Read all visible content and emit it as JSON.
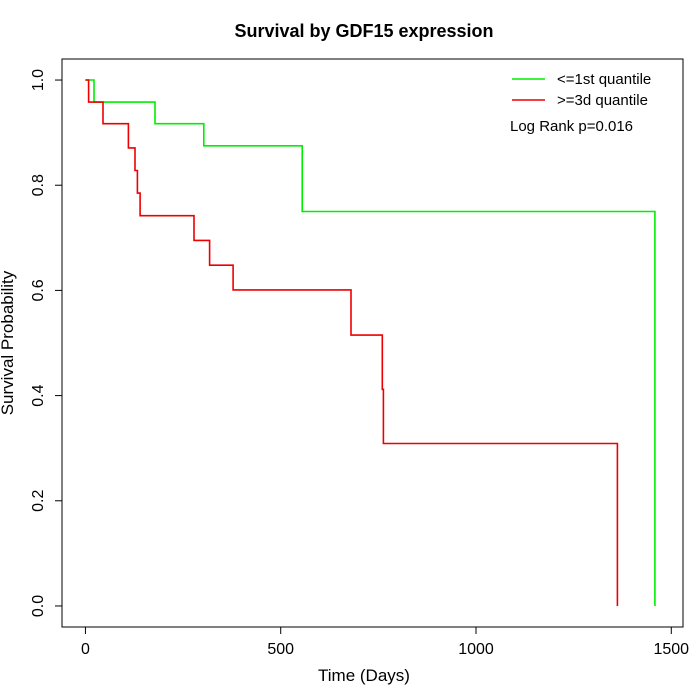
{
  "chart_data": {
    "type": "line",
    "subtype": "kaplan-meier-step",
    "title": "Survival by GDF15 expression",
    "xlabel": "Time (Days)",
    "ylabel": "Survival Probability",
    "xlim": [
      -60,
      1530
    ],
    "ylim": [
      -0.04,
      1.04
    ],
    "x_ticks": [
      0,
      500,
      1000,
      1500
    ],
    "y_ticks": [
      0.0,
      0.2,
      0.4,
      0.6,
      0.8,
      1.0
    ],
    "x_tick_labels": [
      "0",
      "500",
      "1000",
      "1500"
    ],
    "y_tick_labels": [
      "0.0",
      "0.2",
      "0.4",
      "0.6",
      "0.8",
      "1.0"
    ],
    "grid": false,
    "legend_position": "top-right",
    "annotation": "Log Rank p=0.016",
    "series": [
      {
        "name": "<=1st quantile",
        "color": "#00ee00",
        "points": [
          [
            0,
            1.0
          ],
          [
            22,
            1.0
          ],
          [
            22,
            0.958
          ],
          [
            178,
            0.958
          ],
          [
            178,
            0.917
          ],
          [
            303,
            0.917
          ],
          [
            303,
            0.875
          ],
          [
            555,
            0.875
          ],
          [
            555,
            0.75
          ],
          [
            1458,
            0.75
          ],
          [
            1458,
            0.0
          ]
        ]
      },
      {
        "name": ">=3d quantile",
        "color": "#ee0000",
        "points": [
          [
            0,
            1.0
          ],
          [
            8,
            1.0
          ],
          [
            8,
            0.958
          ],
          [
            45,
            0.958
          ],
          [
            45,
            0.917
          ],
          [
            110,
            0.917
          ],
          [
            110,
            0.871
          ],
          [
            127,
            0.871
          ],
          [
            127,
            0.828
          ],
          [
            133,
            0.828
          ],
          [
            133,
            0.785
          ],
          [
            140,
            0.785
          ],
          [
            140,
            0.742
          ],
          [
            278,
            0.742
          ],
          [
            278,
            0.695
          ],
          [
            318,
            0.695
          ],
          [
            318,
            0.648
          ],
          [
            378,
            0.648
          ],
          [
            378,
            0.601
          ],
          [
            680,
            0.601
          ],
          [
            680,
            0.515
          ],
          [
            760,
            0.515
          ],
          [
            760,
            0.412
          ],
          [
            763,
            0.412
          ],
          [
            763,
            0.309
          ],
          [
            1362,
            0.309
          ],
          [
            1362,
            0.0
          ]
        ]
      }
    ]
  }
}
